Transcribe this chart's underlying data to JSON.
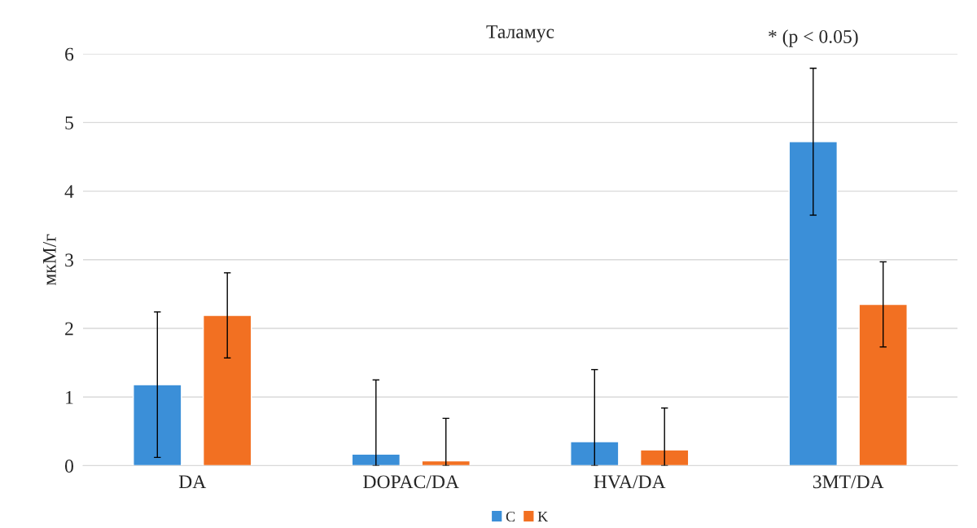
{
  "chart_data": {
    "type": "bar",
    "title": "Таламус",
    "ylabel": "мкМ/г",
    "categories": [
      "DA",
      "DOPAC/DA",
      "HVA/DA",
      "3MT/DA"
    ],
    "series": [
      {
        "name": "C",
        "color": "#3b8fd8",
        "values": [
          1.18,
          0.17,
          0.35,
          4.72
        ],
        "errors": [
          1.06,
          [
            0,
            1.25
          ],
          [
            0,
            1.4
          ],
          1.07
        ]
      },
      {
        "name": "K",
        "color": "#f27022",
        "values": [
          2.19,
          0.07,
          0.23,
          2.35
        ],
        "errors": [
          0.62,
          [
            0,
            0.69
          ],
          [
            0,
            0.84
          ],
          0.62
        ]
      }
    ],
    "ylim": [
      0,
      6
    ],
    "yticks": [
      0,
      1,
      2,
      3,
      4,
      5,
      6
    ],
    "grid": "y",
    "legend": "bottom",
    "annotations": [
      "* (p < 0.05)"
    ]
  }
}
